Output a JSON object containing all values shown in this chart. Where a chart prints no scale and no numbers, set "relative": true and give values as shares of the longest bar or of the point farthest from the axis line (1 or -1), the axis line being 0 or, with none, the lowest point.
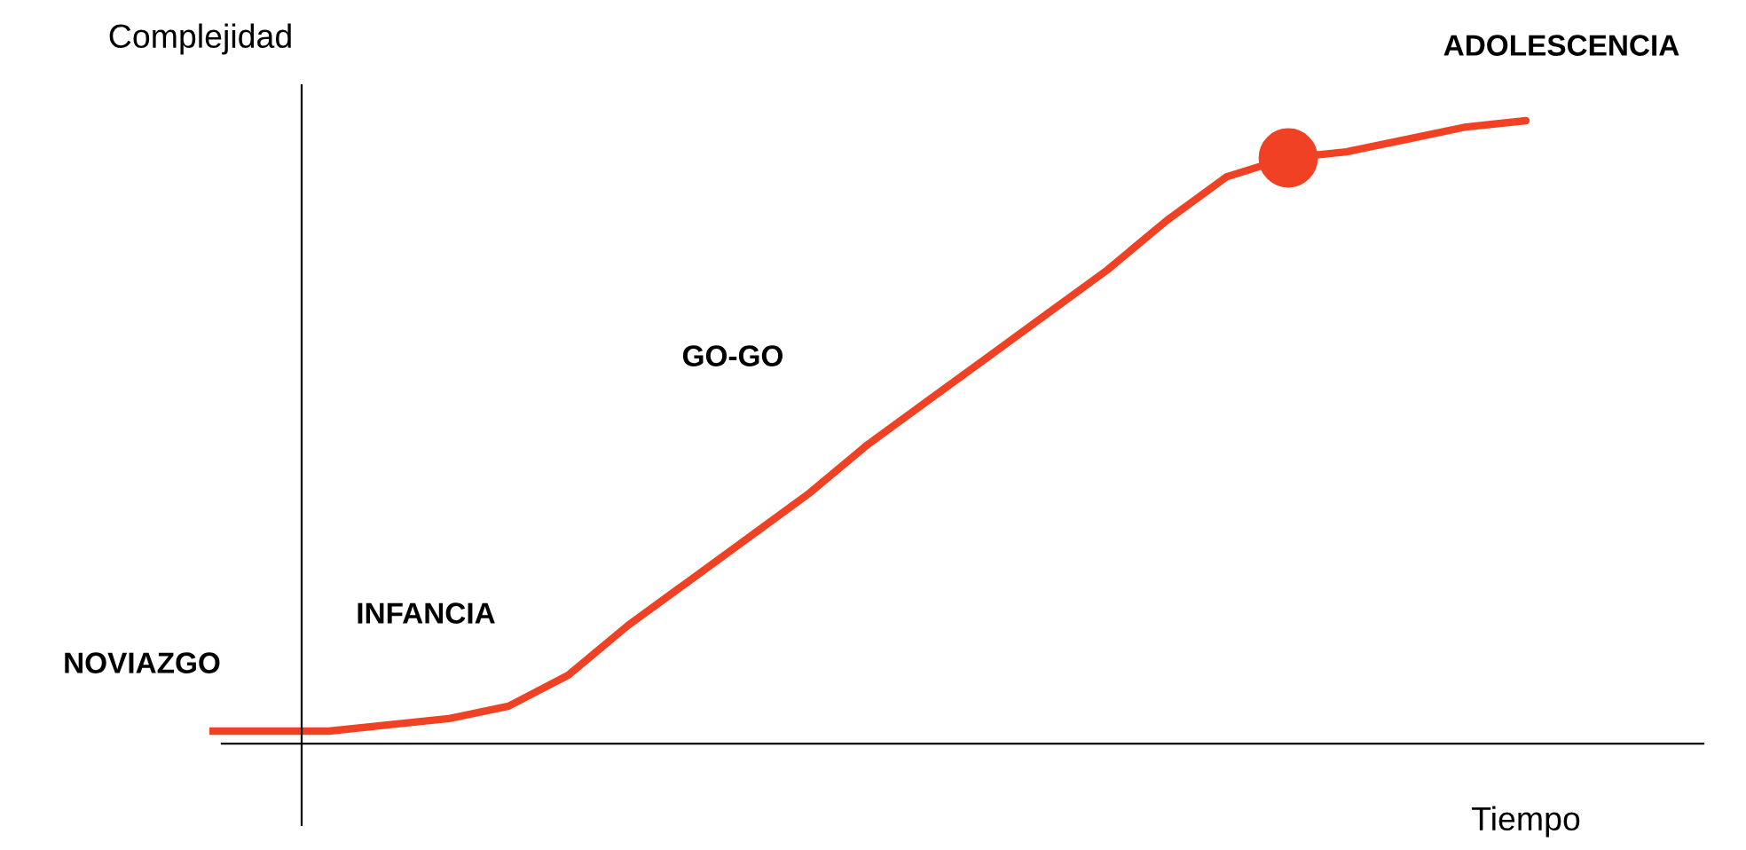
{
  "chart_data": {
    "type": "line",
    "relative": true,
    "xlabel": "Tiempo",
    "ylabel": "Complejidad",
    "annotations": [
      "NOVIAZGO",
      "INFANCIA",
      "GO-GO",
      "ADOLESCENCIA"
    ],
    "categories": [
      null,
      null,
      null,
      null,
      null,
      null,
      null,
      null,
      null,
      null,
      null,
      null,
      null,
      null,
      null,
      null,
      null,
      null,
      null,
      null,
      null,
      null,
      null
    ],
    "series": [
      {
        "color": "#f04124",
        "values": [
          0.02,
          0.02,
          0.02,
          0.03,
          0.04,
          0.06,
          0.11,
          0.19,
          0.26,
          0.33,
          0.4,
          0.48,
          0.55,
          0.62,
          0.69,
          0.76,
          0.84,
          0.91,
          0.94,
          0.95,
          0.97,
          0.99,
          1.0
        ]
      }
    ]
  }
}
